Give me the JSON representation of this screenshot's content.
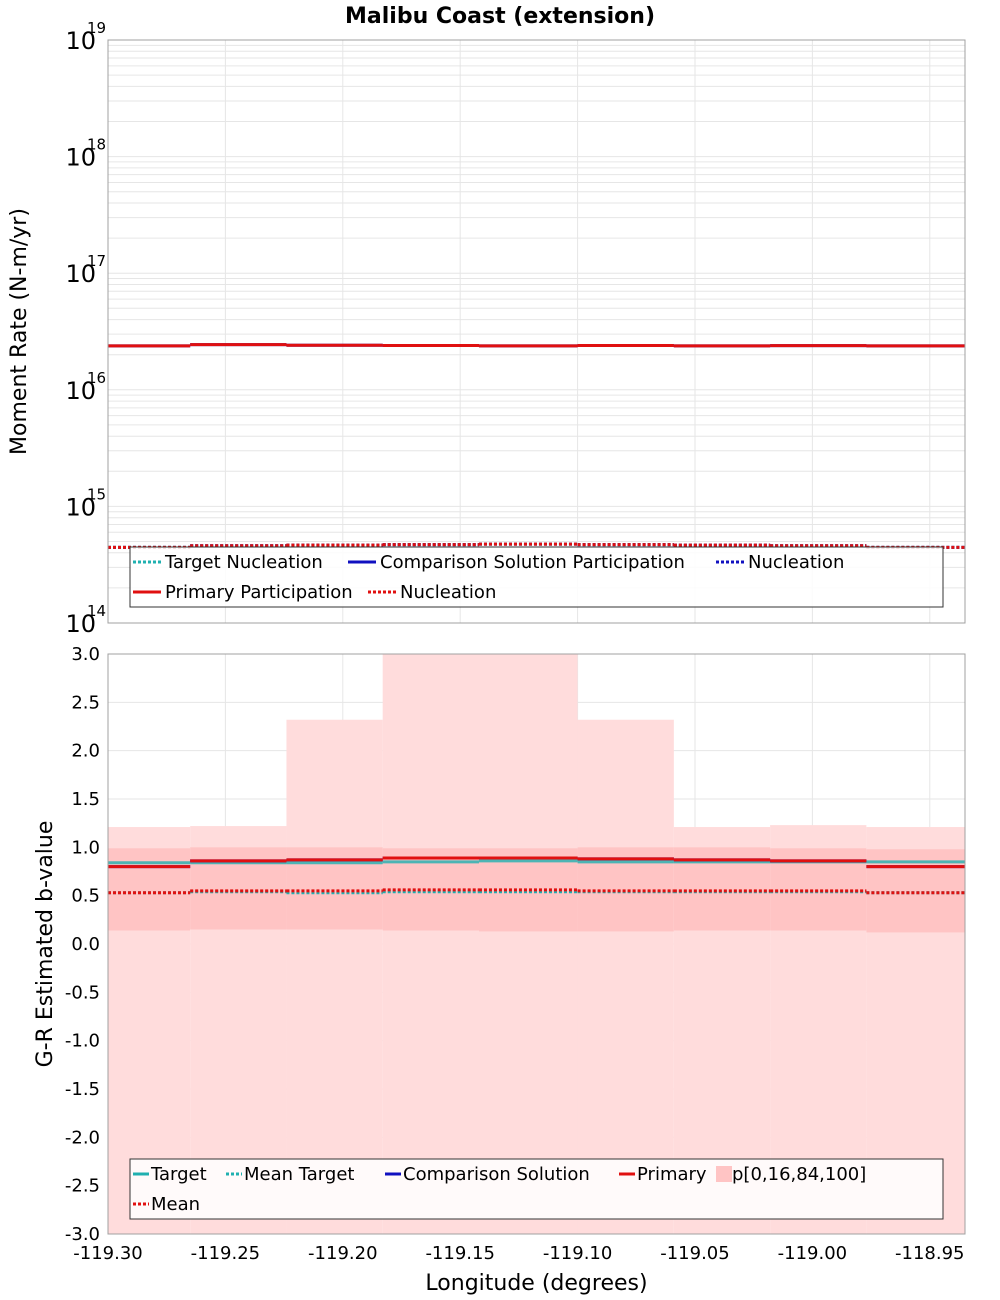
{
  "title": "Malibu Coast (extension)",
  "colors": {
    "target": "#20b0b0",
    "comparison": "#1010c0",
    "primary": "#e01010",
    "band_outer": "#ffdcdc",
    "band_inner": "#ffc4c4",
    "grid": "#e6e6e6",
    "frame": "#a0a0a0"
  },
  "chart_data": [
    {
      "type": "line",
      "panel": "top",
      "xlabel": "",
      "ylabel": "Moment Rate (N-m/yr)",
      "yscale": "log",
      "ylim": [
        100000000000000.0,
        1e+19
      ],
      "xlim": [
        -119.3,
        -118.935
      ],
      "yticks": [
        {
          "base": "10",
          "exp": "14",
          "value": 100000000000000.0
        },
        {
          "base": "10",
          "exp": "15",
          "value": 1000000000000000.0
        },
        {
          "base": "10",
          "exp": "16",
          "value": 1e+16
        },
        {
          "base": "10",
          "exp": "17",
          "value": 1e+17
        },
        {
          "base": "10",
          "exp": "18",
          "value": 1e+18
        },
        {
          "base": "10",
          "exp": "19",
          "value": 1e+19
        }
      ],
      "bin_edges": [
        -119.3,
        -119.265,
        -119.224,
        -119.183,
        -119.142,
        -119.1,
        -119.059,
        -119.018,
        -118.977,
        -118.935
      ],
      "series": [
        {
          "key": "target_nucleation",
          "name": "Target Nucleation",
          "color": "#20b0b0",
          "dash": true,
          "width": 3,
          "values": [
            445000000000000.0,
            460000000000000.0,
            465000000000000.0,
            470000000000000.0,
            475000000000000.0,
            470000000000000.0,
            465000000000000.0,
            460000000000000.0,
            445000000000000.0
          ]
        },
        {
          "key": "comparison_participation",
          "name": "Comparison Solution Participation",
          "color": "#1010c0",
          "dash": false,
          "width": 3,
          "values": [
            2.38e+16,
            2.44e+16,
            2.41e+16,
            2.4e+16,
            2.38e+16,
            2.4e+16,
            2.38e+16,
            2.39e+16,
            2.38e+16
          ]
        },
        {
          "key": "comparison_nucleation",
          "name": "Nucleation",
          "color": "#1010c0",
          "dash": true,
          "width": 3,
          "values": [
            445000000000000.0,
            460000000000000.0,
            465000000000000.0,
            470000000000000.0,
            475000000000000.0,
            470000000000000.0,
            465000000000000.0,
            460000000000000.0,
            445000000000000.0
          ]
        },
        {
          "key": "primary_participation",
          "name": "Primary Participation",
          "color": "#e01010",
          "dash": false,
          "width": 3,
          "values": [
            2.38e+16,
            2.44e+16,
            2.41e+16,
            2.4e+16,
            2.38e+16,
            2.4e+16,
            2.38e+16,
            2.39e+16,
            2.38e+16
          ]
        },
        {
          "key": "primary_nucleation",
          "name": "Nucleation",
          "color": "#e01010",
          "dash": true,
          "width": 3,
          "values": [
            445000000000000.0,
            460000000000000.0,
            465000000000000.0,
            470000000000000.0,
            475000000000000.0,
            470000000000000.0,
            465000000000000.0,
            460000000000000.0,
            445000000000000.0
          ]
        }
      ],
      "legend": {
        "placement": "bottom-left",
        "rows": [
          [
            {
              "label": "Target Nucleation",
              "color": "#20b0b0",
              "dash": true
            },
            {
              "label": "Comparison Solution Participation",
              "color": "#1010c0",
              "dash": false
            },
            {
              "label": "Nucleation",
              "color": "#1010c0",
              "dash": true
            }
          ],
          [
            {
              "label": "Primary Participation",
              "color": "#e01010",
              "dash": false
            },
            {
              "label": "Nucleation",
              "color": "#e01010",
              "dash": true
            }
          ]
        ]
      },
      "grid": true
    },
    {
      "type": "line",
      "panel": "bottom",
      "xlabel": "Longitude (degrees)",
      "ylabel": "G-R Estimated b-value",
      "ylim": [
        -3.0,
        3.0
      ],
      "xlim": [
        -119.3,
        -118.935
      ],
      "yticks": [
        "-3.0",
        "-2.5",
        "-2.0",
        "-1.5",
        "-1.0",
        "-0.5",
        "0.0",
        "0.5",
        "1.0",
        "1.5",
        "2.0",
        "2.5",
        "3.0"
      ],
      "xticks": [
        "-119.30",
        "-119.25",
        "-119.20",
        "-119.15",
        "-119.10",
        "-119.05",
        "-119.00",
        "-118.95"
      ],
      "bin_edges": [
        -119.3,
        -119.265,
        -119.224,
        -119.183,
        -119.142,
        -119.1,
        -119.059,
        -119.018,
        -118.977,
        -118.935
      ],
      "bands": {
        "p0": [
          -3.0,
          -3.0,
          -3.0,
          -3.0,
          -3.0,
          -3.0,
          -3.0,
          -3.0,
          -3.0
        ],
        "p100": [
          1.21,
          1.22,
          2.32,
          3.0,
          3.0,
          2.32,
          1.21,
          1.23,
          1.21
        ],
        "p16": [
          0.14,
          0.15,
          0.15,
          0.14,
          0.13,
          0.13,
          0.14,
          0.14,
          0.12
        ],
        "p84": [
          0.99,
          1.0,
          1.0,
          0.99,
          0.99,
          1.0,
          1.0,
          0.99,
          0.98
        ]
      },
      "series": [
        {
          "key": "target",
          "name": "Target",
          "color": "#20b0b0",
          "dash": false,
          "width": 3,
          "values": [
            0.84,
            0.84,
            0.84,
            0.85,
            0.86,
            0.85,
            0.85,
            0.85,
            0.85
          ]
        },
        {
          "key": "mean_target",
          "name": "Mean Target",
          "color": "#20b0b0",
          "dash": true,
          "width": 3,
          "values": [
            0.53,
            0.54,
            0.53,
            0.54,
            0.54,
            0.54,
            0.54,
            0.54,
            0.53
          ]
        },
        {
          "key": "comparison",
          "name": "Comparison Solution",
          "color": "#1010c0",
          "dash": false,
          "width": 3,
          "values": [
            0.8,
            0.86,
            0.87,
            0.89,
            0.89,
            0.88,
            0.87,
            0.86,
            0.8
          ]
        },
        {
          "key": "primary",
          "name": "Primary",
          "color": "#e01010",
          "dash": false,
          "width": 3,
          "values": [
            0.8,
            0.86,
            0.87,
            0.89,
            0.89,
            0.88,
            0.87,
            0.86,
            0.8
          ]
        },
        {
          "key": "mean",
          "name": "Mean",
          "color": "#e01010",
          "dash": true,
          "width": 3,
          "values": [
            0.53,
            0.55,
            0.55,
            0.56,
            0.56,
            0.55,
            0.55,
            0.55,
            0.53
          ]
        }
      ],
      "legend": {
        "placement": "bottom-left",
        "rows": [
          [
            {
              "label": "Target",
              "color": "#20b0b0",
              "dash": false,
              "kind": "line"
            },
            {
              "label": "Mean Target",
              "color": "#20b0b0",
              "dash": true,
              "kind": "line"
            },
            {
              "label": "Comparison Solution",
              "color": "#1010c0",
              "dash": false,
              "kind": "line"
            },
            {
              "label": "Primary",
              "color": "#e01010",
              "dash": false,
              "kind": "line"
            },
            {
              "label": "p[0,16,84,100]",
              "color": "#ffc4c4",
              "dash": false,
              "kind": "box"
            }
          ],
          [
            {
              "label": "Mean",
              "color": "#e01010",
              "dash": true,
              "kind": "line"
            }
          ]
        ]
      },
      "grid": true
    }
  ]
}
